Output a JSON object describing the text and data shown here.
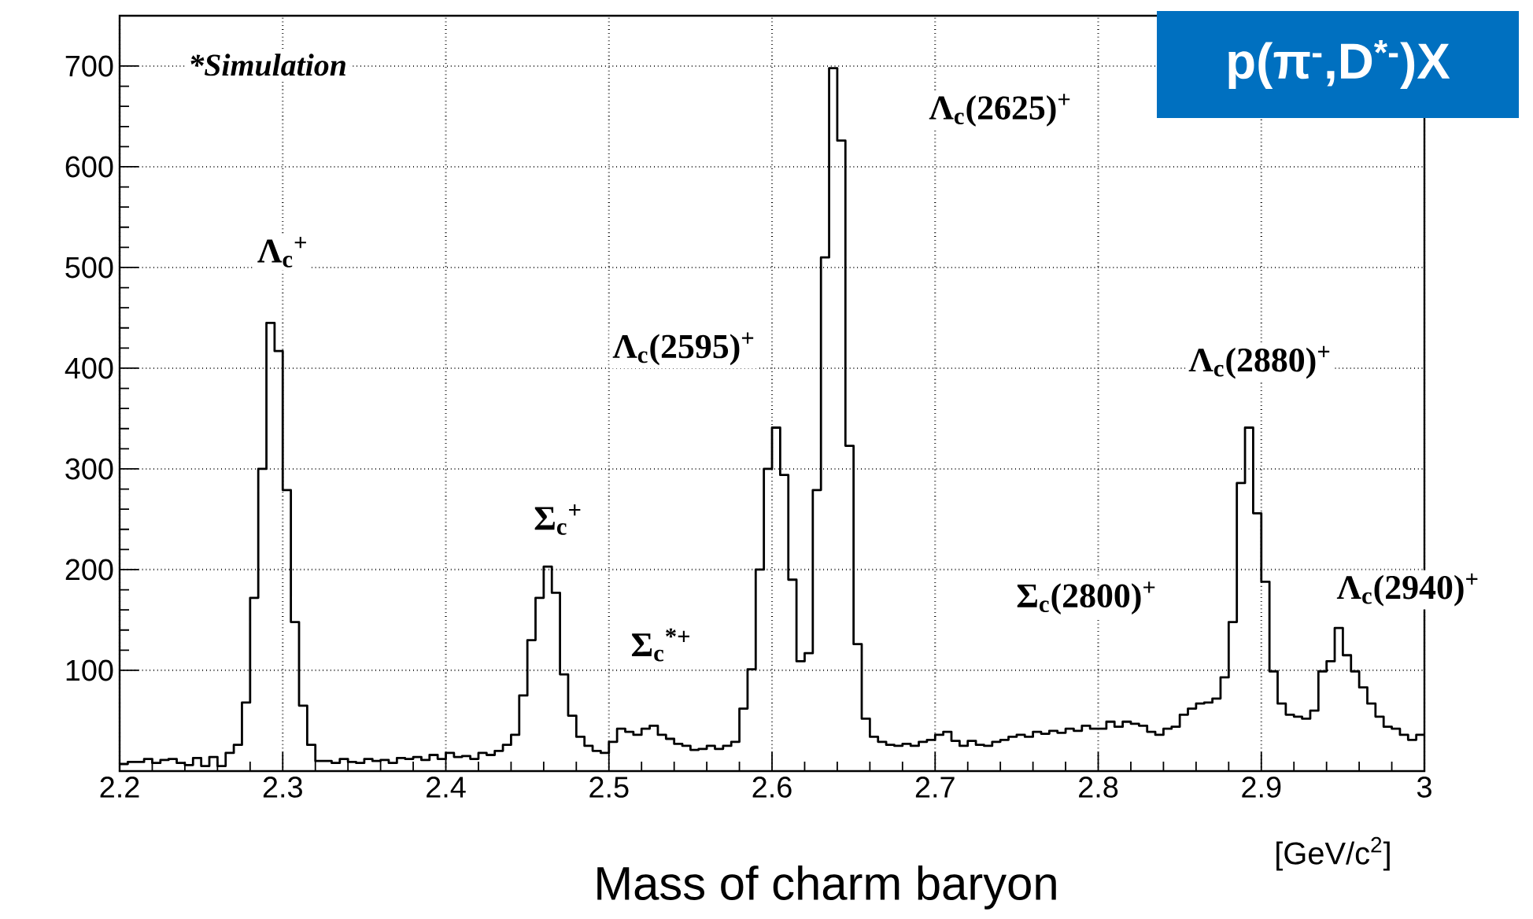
{
  "chart_data": {
    "type": "histogram",
    "title": "p(π$^{-}$,D$^{*-}$)X",
    "xlabel": "Mass of charm baryon",
    "bins": [
      2.2,
      2.205,
      2.21,
      2.215,
      2.22,
      2.225,
      2.23,
      2.235,
      2.24,
      2.245,
      2.25,
      2.255,
      2.26,
      2.265,
      2.27,
      2.275,
      2.28,
      2.285,
      2.29,
      2.295,
      2.3,
      2.305,
      2.31,
      2.315,
      2.32,
      2.325,
      2.33,
      2.335,
      2.34,
      2.345,
      2.35,
      2.355,
      2.36,
      2.365,
      2.37,
      2.375,
      2.38,
      2.385,
      2.39,
      2.395,
      2.4,
      2.405,
      2.41,
      2.415,
      2.42,
      2.425,
      2.43,
      2.435,
      2.44,
      2.445,
      2.45,
      2.455,
      2.46,
      2.465,
      2.47,
      2.475,
      2.48,
      2.485,
      2.49,
      2.495,
      2.5,
      2.505,
      2.51,
      2.515,
      2.52,
      2.525,
      2.53,
      2.535,
      2.54,
      2.545,
      2.55,
      2.555,
      2.56,
      2.565,
      2.57,
      2.575,
      2.58,
      2.585,
      2.59,
      2.595,
      2.6,
      2.605,
      2.61,
      2.615,
      2.62,
      2.625,
      2.63,
      2.635,
      2.64,
      2.645,
      2.65,
      2.655,
      2.66,
      2.665,
      2.67,
      2.675,
      2.68,
      2.685,
      2.69,
      2.695,
      2.7,
      2.705,
      2.71,
      2.715,
      2.72,
      2.725,
      2.73,
      2.735,
      2.74,
      2.745,
      2.75,
      2.755,
      2.76,
      2.765,
      2.77,
      2.775,
      2.78,
      2.785,
      2.79,
      2.795,
      2.8,
      2.805,
      2.81,
      2.815,
      2.82,
      2.825,
      2.83,
      2.835,
      2.84,
      2.845,
      2.85,
      2.855,
      2.86,
      2.865,
      2.87,
      2.875,
      2.88,
      2.885,
      2.89,
      2.895,
      2.9,
      2.905,
      2.91,
      2.915,
      2.92,
      2.925,
      2.93,
      2.935,
      2.94,
      2.945,
      2.95,
      2.955,
      2.96,
      2.965,
      2.97,
      2.975,
      2.98,
      2.985,
      2.99,
      2.995,
      3.0
    ],
    "values": [
      7,
      9,
      9,
      12,
      8,
      11,
      12,
      8,
      6,
      13,
      5,
      14,
      5,
      18,
      26,
      68,
      172,
      300,
      445,
      417,
      279,
      148,
      65,
      26,
      10,
      10,
      8,
      12,
      9,
      8,
      12,
      10,
      11,
      8,
      13,
      12,
      14,
      11,
      16,
      12,
      18,
      14,
      15,
      12,
      18,
      16,
      20,
      26,
      36,
      75,
      130,
      172,
      203,
      177,
      96,
      55,
      34,
      25,
      20,
      18,
      29,
      42,
      39,
      36,
      42,
      45,
      36,
      32,
      27,
      25,
      21,
      22,
      25,
      22,
      25,
      29,
      62,
      101,
      200,
      300,
      341,
      294,
      190,
      109,
      117,
      279,
      510,
      698,
      626,
      323,
      126,
      52,
      34,
      29,
      26,
      25,
      27,
      25,
      29,
      31,
      36,
      39,
      30,
      25,
      30,
      26,
      25,
      29,
      31,
      34,
      36,
      34,
      39,
      37,
      40,
      38,
      42,
      40,
      45,
      42,
      42,
      49,
      44,
      49,
      47,
      45,
      39,
      36,
      42,
      44,
      56,
      62,
      67,
      68,
      72,
      93,
      148,
      286,
      341,
      256,
      188,
      99,
      67,
      56,
      54,
      52,
      60,
      99,
      109,
      142,
      115,
      99,
      83,
      67,
      54,
      44,
      42,
      36,
      31,
      36
    ],
    "color": "#000000",
    "xlim": [
      2.2,
      3.0
    ],
    "ylim": [
      0,
      750
    ],
    "xticks": [
      2.2,
      2.3,
      2.4,
      2.5,
      2.6,
      2.7,
      2.8,
      2.9,
      3
    ],
    "yticks": [
      100,
      200,
      300,
      400,
      500,
      600,
      700
    ],
    "grid": true,
    "annotations": [
      "*Simulation",
      "[GeV/c$^{2}$]",
      "Λ$_{c}$$^{+}$",
      "Σ$_{c}$$^{+}$",
      "Σ$_{c}$$^{*+}$",
      "Λ$_{c}$(2595)$^{+}$",
      "Λ$_{c}$(2625)$^{+}$",
      "Σ$_{c}$(2800)$^{+}$",
      "Λ$_{c}$(2880)$^{+}$",
      "Λ$_{c}$(2940)$^{+}$"
    ]
  }
}
